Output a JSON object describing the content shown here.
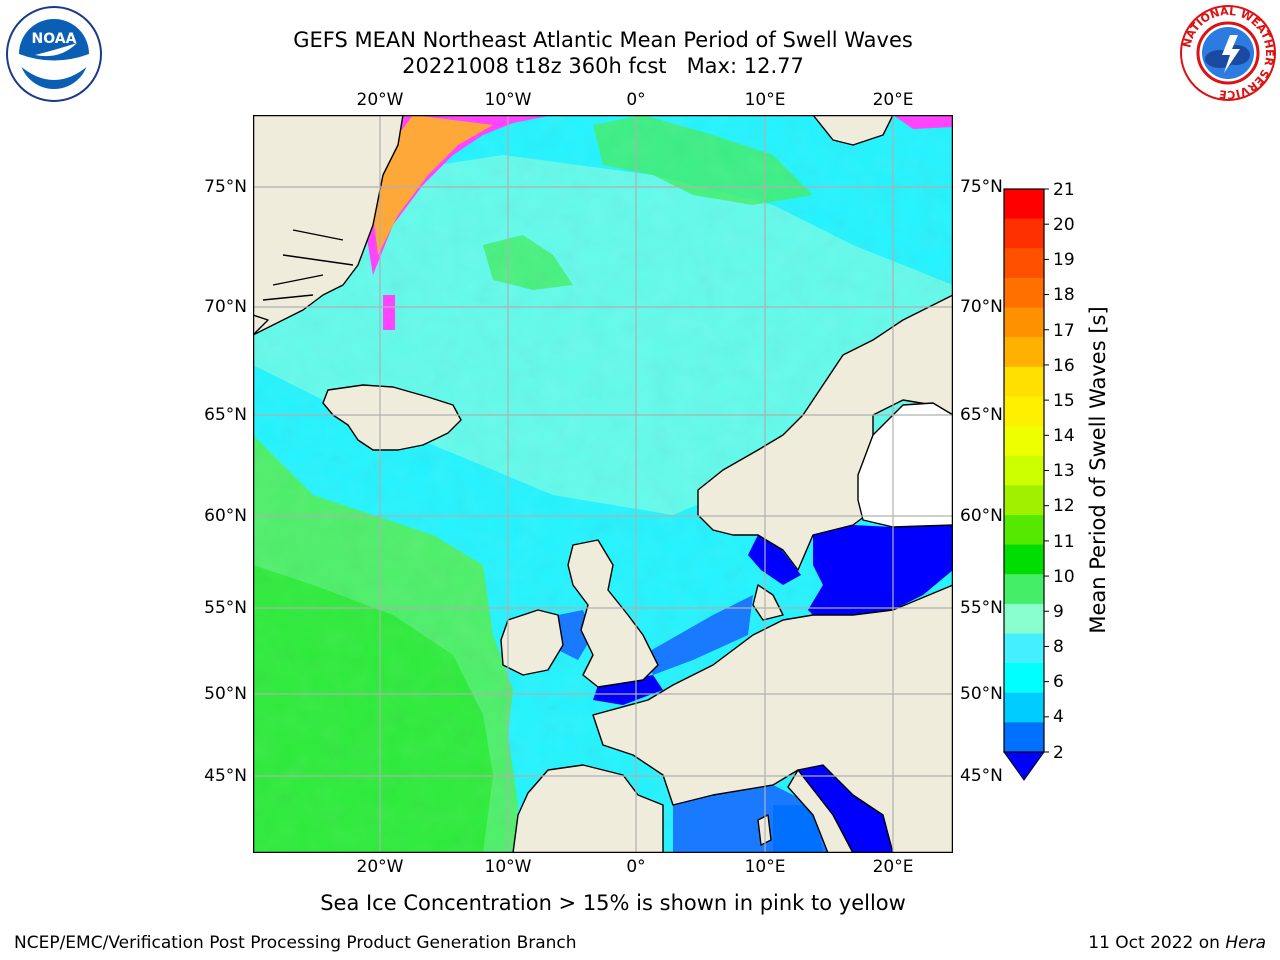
{
  "header": {
    "title_line1": "GEFS MEAN Northeast Atlantic Mean Period of Swell Waves",
    "title_line2": "20221008 t18z 360h fcst   Max: 12.77"
  },
  "map": {
    "lon_ticks": [
      "20°W",
      "10°W",
      "0°",
      "10°E",
      "20°E"
    ],
    "lat_ticks": [
      "75°N",
      "70°N",
      "65°N",
      "60°N",
      "55°N",
      "50°N",
      "45°N"
    ],
    "colors": {
      "land": "#efecdc",
      "ocean_low": "#0070ff",
      "ocean_mid": "#00eeff",
      "ocean_high": "#4af06a",
      "ice_pink": "#ff44ff",
      "ice_orange": "#ffa020",
      "grid": "#b0b0b0"
    }
  },
  "colorbar": {
    "title": "Mean Period of Swell Waves [s]",
    "labels": [
      "21",
      "20",
      "19",
      "18",
      "17",
      "16",
      "15",
      "14",
      "13",
      "12",
      "11",
      "10",
      "9",
      "8",
      "6",
      "4",
      "2"
    ],
    "colors": [
      "#ff0000",
      "#ff3000",
      "#ff5000",
      "#ff7000",
      "#ff9000",
      "#ffb000",
      "#ffe000",
      "#fff000",
      "#eeff00",
      "#ccff00",
      "#a0f000",
      "#55e800",
      "#00dd00",
      "#44ee66",
      "#88ffcc",
      "#44f0ff",
      "#00ffff",
      "#00ccff",
      "#0070ff"
    ]
  },
  "captions": {
    "ice_note": "Sea Ice Concentration > 15% is shown in pink to yellow"
  },
  "footer": {
    "left_text": "NCEP/EMC/Verification Post Processing Product Generation Branch",
    "date_text": "11 Oct 2022 on ",
    "host_text": "Hera"
  },
  "logos": {
    "noaa_text": "NOAA",
    "nws_ring_text": "NATIONAL WEATHER SERVICE"
  }
}
